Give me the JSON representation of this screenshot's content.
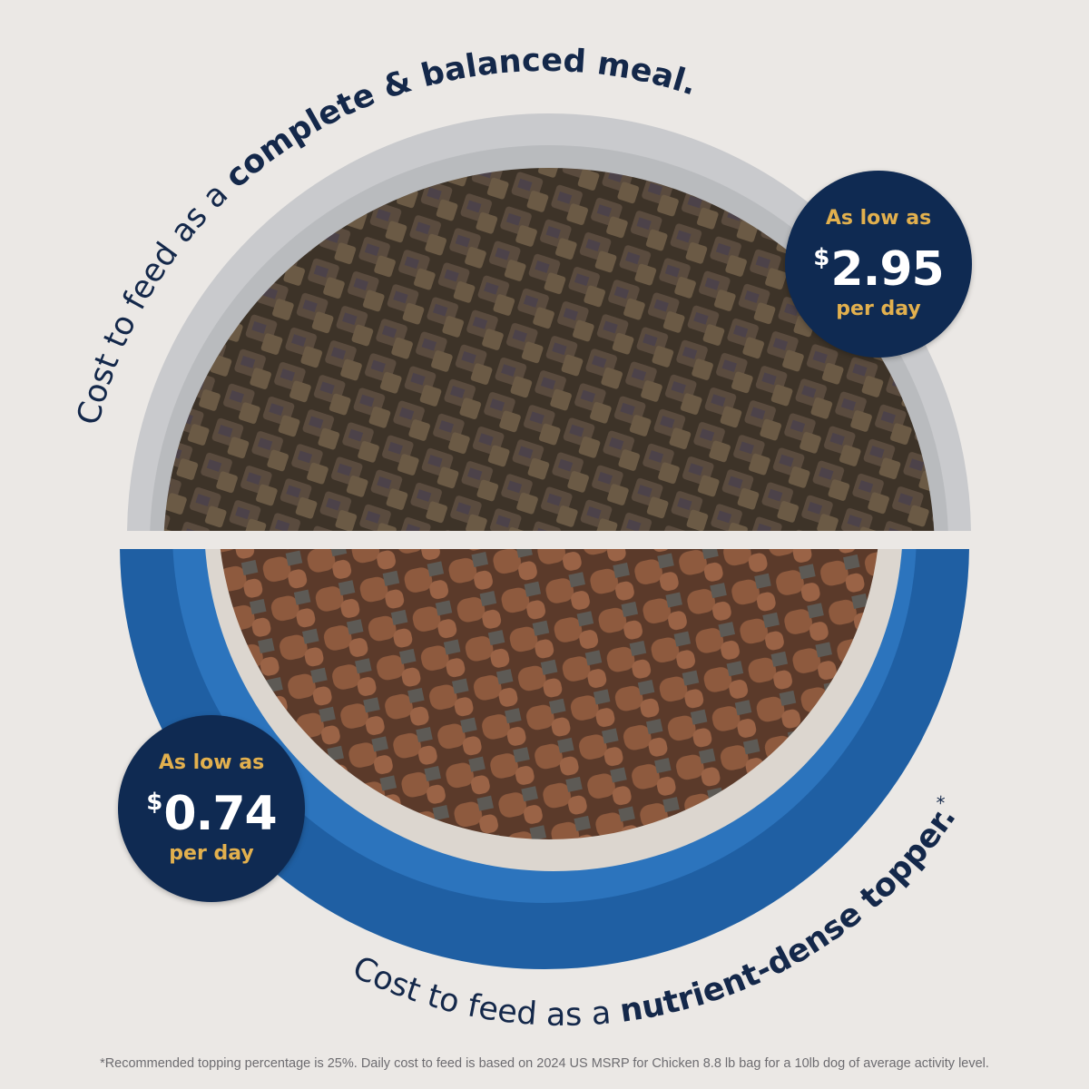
{
  "headline_top": {
    "prefix": "Cost to feed as a ",
    "emphasis": "complete & balanced meal."
  },
  "headline_bottom": {
    "prefix": "Cost to feed as a ",
    "emphasis": "nutrient-dense topper.",
    "mark": "*"
  },
  "badge_top": {
    "label": "As low as",
    "currency": "$",
    "price": "2.95",
    "unit": "per day"
  },
  "badge_bottom": {
    "label": "As low as",
    "currency": "$",
    "price": "0.74",
    "unit": "per day"
  },
  "footnote": "*Recommended topping percentage is 25%. Daily cost to feed is based on 2024 US MSRP for Chicken 8.8 lb bag for a 10lb dog of average activity level.",
  "colors": {
    "background": "#ebe8e5",
    "navy": "#0f2a52",
    "gold": "#e2b04e",
    "blue_bowl": "#1f5fa3",
    "gray_bowl": "#c9cacd"
  }
}
